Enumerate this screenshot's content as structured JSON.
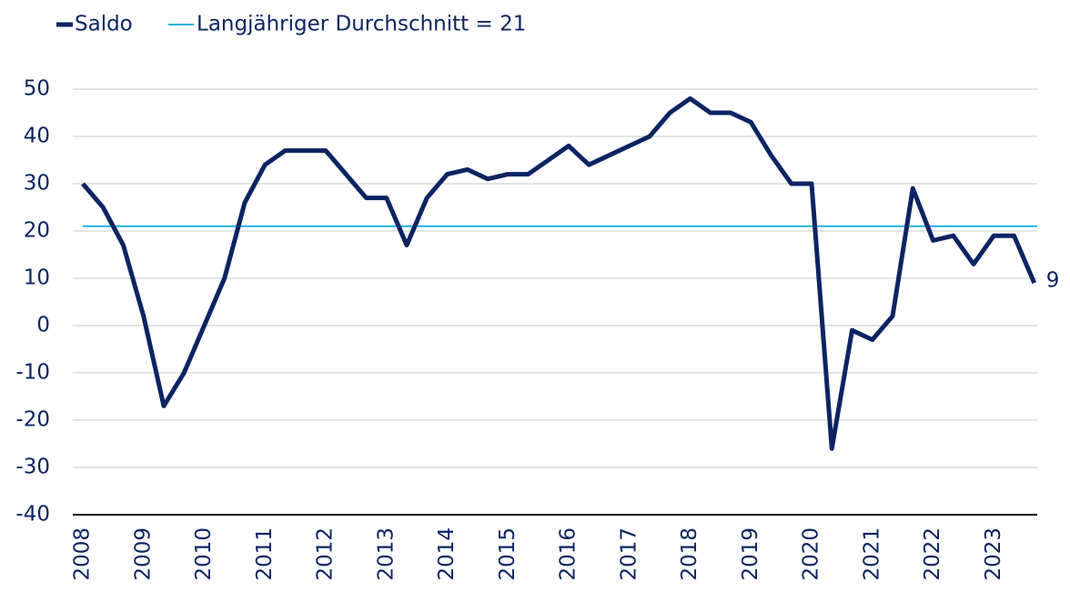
{
  "chart_data": {
    "type": "line",
    "categories": [
      "2008",
      null,
      null,
      "2009",
      null,
      null,
      "2010",
      null,
      null,
      "2011",
      null,
      null,
      "2012",
      null,
      null,
      "2013",
      null,
      null,
      "2014",
      null,
      null,
      "2015",
      null,
      null,
      "2016",
      null,
      null,
      "2017",
      null,
      null,
      "2018",
      null,
      null,
      "2019",
      null,
      null,
      "2020",
      null,
      null,
      "2021",
      null,
      null,
      "2022",
      null,
      null,
      "2023",
      null,
      null
    ],
    "series": [
      {
        "name": "Saldo",
        "color": "#0b2462",
        "values": [
          30,
          25,
          17,
          2,
          -17,
          -10,
          0,
          10,
          26,
          34,
          37,
          37,
          37,
          32,
          27,
          27,
          17,
          27,
          32,
          33,
          31,
          32,
          32,
          35,
          38,
          34,
          36,
          38,
          40,
          45,
          48,
          45,
          45,
          43,
          36,
          30,
          30,
          -26,
          -1,
          -3,
          2,
          29,
          18,
          19,
          13,
          19,
          19,
          9
        ]
      }
    ],
    "reference_line": {
      "name": "Langjähriger Durchschnitt = 21",
      "value": 21,
      "color": "#1fb2e3"
    },
    "ylim": [
      -40,
      50
    ],
    "yticks": [
      -40,
      -30,
      -20,
      -10,
      0,
      10,
      20,
      30,
      40,
      50
    ],
    "grid": true
  }
}
